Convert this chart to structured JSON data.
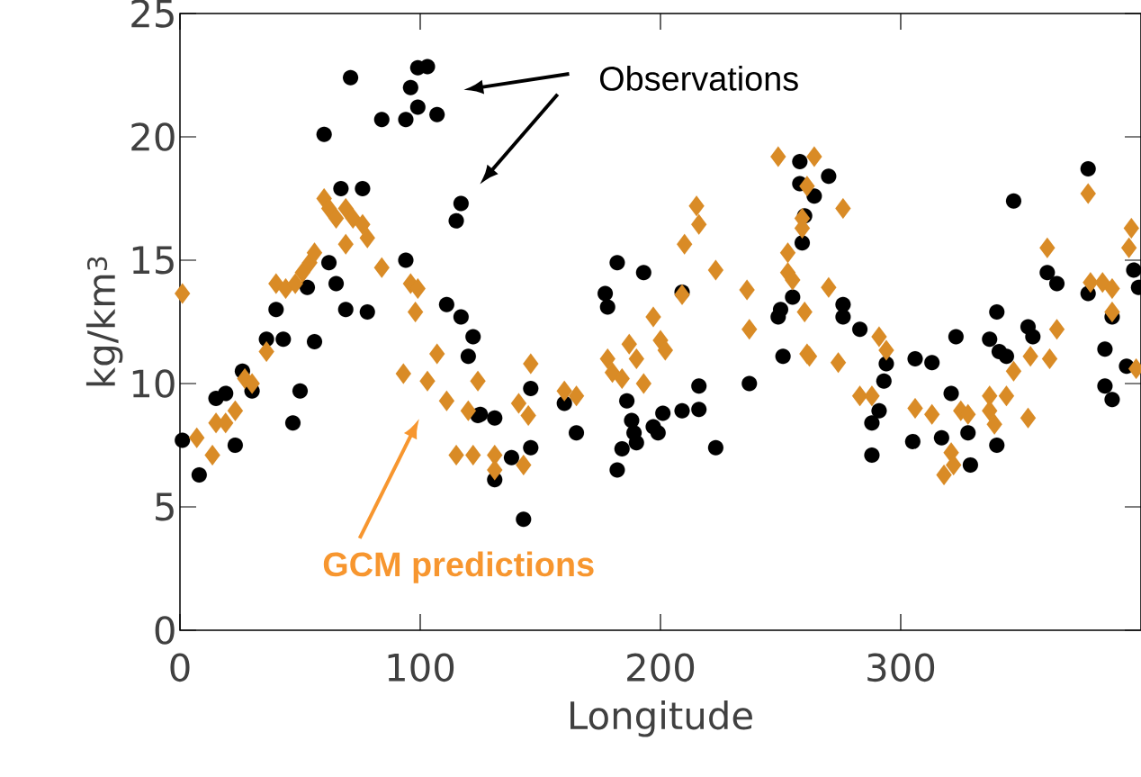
{
  "chart_data": {
    "type": "scatter",
    "xlabel": "Longitude",
    "ylabel": "kg/km$^{3}$",
    "xlim": [
      0,
      400
    ],
    "ylim": [
      0,
      25
    ],
    "xticks": [
      0,
      100,
      200,
      300
    ],
    "yticks": [
      0,
      5,
      10,
      15,
      20,
      25
    ],
    "grid": false,
    "annotations": [
      "Observations",
      "GCM predictions"
    ],
    "series": [
      {
        "color": "#000000",
        "marker": "circle",
        "x": [
          1,
          8,
          15,
          19,
          23,
          26,
          30,
          36,
          40,
          43,
          47,
          50,
          53,
          56,
          60,
          62,
          65,
          67,
          69,
          71,
          76,
          78,
          84,
          94,
          94,
          96,
          99,
          99,
          103,
          107,
          111,
          115,
          117,
          117,
          120,
          122,
          124,
          125,
          131,
          131,
          138,
          143,
          146,
          146,
          160,
          165,
          177,
          178,
          182,
          182,
          184,
          186,
          188,
          189,
          190,
          193,
          197,
          199,
          201,
          209,
          209,
          216,
          216,
          223,
          237,
          249,
          250,
          251,
          255,
          258,
          258,
          259,
          260,
          264,
          270,
          276,
          276,
          283,
          288,
          288,
          291,
          293,
          294,
          305,
          306,
          313,
          317,
          321,
          323,
          328,
          329,
          337,
          340,
          340,
          341,
          344,
          347,
          353,
          355,
          361,
          365,
          378,
          378,
          385,
          385,
          388,
          388,
          394,
          397,
          399
        ],
        "values": [
          7.7,
          6.3,
          9.4,
          9.6,
          7.5,
          10.5,
          9.7,
          11.8,
          13.0,
          11.8,
          8.4,
          9.7,
          13.9,
          11.7,
          20.1,
          14.9,
          14.05,
          17.9,
          13.0,
          22.4,
          17.9,
          12.9,
          20.7,
          20.7,
          15.0,
          22.0,
          21.2,
          22.8,
          22.85,
          20.9,
          13.2,
          16.6,
          17.3,
          12.7,
          11.1,
          11.9,
          8.7,
          8.75,
          8.6,
          6.1,
          7.0,
          4.5,
          9.8,
          7.4,
          9.2,
          8.0,
          13.65,
          13.1,
          14.9,
          6.5,
          7.35,
          9.3,
          8.5,
          8.0,
          7.6,
          14.5,
          8.25,
          8.0,
          8.8,
          8.9,
          13.7,
          8.95,
          9.9,
          7.4,
          10.0,
          12.7,
          13.0,
          11.1,
          13.5,
          19.0,
          18.1,
          15.7,
          16.8,
          17.6,
          18.4,
          13.2,
          12.7,
          12.2,
          8.4,
          7.1,
          8.9,
          10.1,
          10.8,
          7.65,
          11.0,
          10.85,
          7.8,
          9.6,
          11.9,
          8.0,
          6.7,
          11.8,
          12.9,
          7.5,
          11.3,
          11.1,
          17.4,
          12.3,
          11.9,
          14.5,
          14.05,
          18.7,
          13.65,
          11.4,
          9.9,
          12.7,
          9.35,
          10.7,
          14.6,
          13.9
        ]
      },
      {
        "color": "#d98b26",
        "marker": "diamond",
        "x": [
          1,
          7,
          13.5,
          15,
          19,
          23,
          27,
          30,
          36,
          40,
          44,
          48,
          51,
          54,
          56,
          60,
          62,
          65,
          69,
          69,
          72,
          76,
          78,
          84,
          93,
          96,
          98,
          99,
          103,
          107,
          111,
          115,
          120,
          122,
          124,
          131,
          131,
          141,
          143,
          145,
          146,
          160,
          165,
          178,
          180,
          184,
          187,
          190,
          193,
          197,
          200,
          202,
          209,
          210,
          215,
          216,
          223,
          236,
          237,
          249,
          253,
          253,
          255,
          259,
          259,
          260,
          261,
          261,
          262,
          264,
          270,
          274,
          276,
          283,
          288,
          291,
          294,
          306,
          313,
          318,
          321,
          322,
          325,
          328,
          337,
          337,
          339,
          344,
          347,
          353,
          354,
          362,
          361,
          365,
          378,
          379,
          384,
          388,
          388,
          395,
          396,
          398
        ],
        "values": [
          13.65,
          7.8,
          7.1,
          8.4,
          8.4,
          8.9,
          10.2,
          10.0,
          11.3,
          14.05,
          13.85,
          14.05,
          14.5,
          14.9,
          15.3,
          17.5,
          17.1,
          16.7,
          17.1,
          15.65,
          16.7,
          16.45,
          15.9,
          14.7,
          10.4,
          14.05,
          12.9,
          13.85,
          10.1,
          11.2,
          9.3,
          7.1,
          8.9,
          7.1,
          10.1,
          7.1,
          6.5,
          9.2,
          6.7,
          8.7,
          10.8,
          9.7,
          9.5,
          11.0,
          10.45,
          10.2,
          11.6,
          11.0,
          10.0,
          12.7,
          11.75,
          11.35,
          13.6,
          15.65,
          17.2,
          16.45,
          14.6,
          13.8,
          12.2,
          19.2,
          15.3,
          14.5,
          14.2,
          16.7,
          16.3,
          12.9,
          18.0,
          11.2,
          11.1,
          19.2,
          13.9,
          10.85,
          17.1,
          9.5,
          9.5,
          11.9,
          11.35,
          9.0,
          8.75,
          6.3,
          7.2,
          6.7,
          8.9,
          8.75,
          9.5,
          8.9,
          8.35,
          9.5,
          10.5,
          8.6,
          11.1,
          11.0,
          15.5,
          12.2,
          17.7,
          14.1,
          14.1,
          13.85,
          12.9,
          15.5,
          16.3,
          10.6
        ]
      }
    ]
  }
}
